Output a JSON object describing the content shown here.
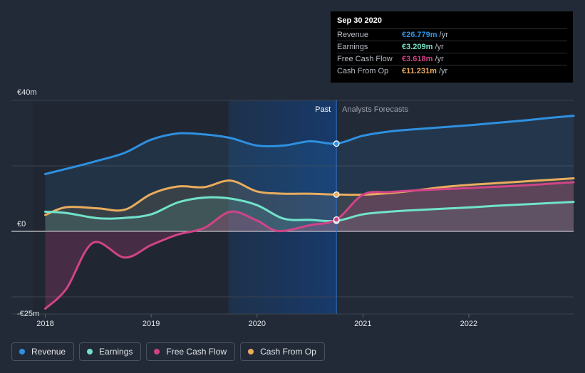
{
  "chart_data": {
    "type": "area",
    "title": "",
    "xlabel": "",
    "ylabel": "",
    "x_ticks": [
      {
        "label": "2018",
        "value": 2018
      },
      {
        "label": "2019",
        "value": 2019
      },
      {
        "label": "2020",
        "value": 2020
      },
      {
        "label": "2021",
        "value": 2021
      },
      {
        "label": "2022",
        "value": 2022
      }
    ],
    "y_ticks": [
      {
        "label": "€40m",
        "value": 40
      },
      {
        "label": "€0",
        "value": 0
      },
      {
        "label": "-€25m",
        "value": -25
      }
    ],
    "xlim": [
      2017.68,
      2022.99
    ],
    "ylim": [
      -25,
      40
    ],
    "gridlines_y": [
      40,
      20,
      0,
      -20
    ],
    "shaded_start": 2019.73,
    "divider_x": 2020.75,
    "region_past": "Past",
    "region_forecast": "Analysts Forecasts",
    "series": [
      {
        "name": "Revenue",
        "color": "#2e90e0",
        "fill": true,
        "points": [
          [
            2018,
            17.5
          ],
          [
            2018.25,
            19.5
          ],
          [
            2018.5,
            21.6
          ],
          [
            2018.75,
            24
          ],
          [
            2019,
            28
          ],
          [
            2019.25,
            29.9
          ],
          [
            2019.5,
            29.6
          ],
          [
            2019.75,
            28.5
          ],
          [
            2020,
            26.2
          ],
          [
            2020.25,
            26.2
          ],
          [
            2020.5,
            27.5
          ],
          [
            2020.75,
            26.8
          ],
          [
            2021,
            29.2
          ],
          [
            2021.25,
            30.5
          ],
          [
            2021.5,
            31.2
          ],
          [
            2021.75,
            31.8
          ],
          [
            2022,
            32.4
          ],
          [
            2022.25,
            33.1
          ],
          [
            2022.5,
            33.8
          ],
          [
            2022.75,
            34.6
          ],
          [
            2022.99,
            35.3
          ]
        ]
      },
      {
        "name": "Cash From Op",
        "color": "#e9ac5e",
        "fill": true,
        "points": [
          [
            2018,
            5
          ],
          [
            2018.2,
            7.4
          ],
          [
            2018.5,
            7
          ],
          [
            2018.75,
            6.6
          ],
          [
            2019,
            11.4
          ],
          [
            2019.25,
            13.7
          ],
          [
            2019.5,
            13.5
          ],
          [
            2019.75,
            15.5
          ],
          [
            2020,
            12.2
          ],
          [
            2020.25,
            11.5
          ],
          [
            2020.5,
            11.5
          ],
          [
            2020.75,
            11.231
          ],
          [
            2021,
            11.2
          ],
          [
            2021.25,
            11.7
          ],
          [
            2021.5,
            12.5
          ],
          [
            2021.75,
            13.5
          ],
          [
            2022,
            14.2
          ],
          [
            2022.25,
            14.7
          ],
          [
            2022.5,
            15.2
          ],
          [
            2022.75,
            15.7
          ],
          [
            2022.99,
            16.2
          ]
        ]
      },
      {
        "name": "Earnings",
        "color": "#71e3cb",
        "fill": true,
        "points": [
          [
            2018,
            6
          ],
          [
            2018.2,
            5.6
          ],
          [
            2018.5,
            4
          ],
          [
            2018.75,
            4.1
          ],
          [
            2019,
            5.2
          ],
          [
            2019.25,
            8.8
          ],
          [
            2019.5,
            10.3
          ],
          [
            2019.75,
            10
          ],
          [
            2020,
            8
          ],
          [
            2020.25,
            3.9
          ],
          [
            2020.5,
            3.5
          ],
          [
            2020.75,
            3.209
          ],
          [
            2021,
            5.2
          ],
          [
            2021.25,
            6
          ],
          [
            2021.5,
            6.5
          ],
          [
            2021.75,
            6.9
          ],
          [
            2022,
            7.3
          ],
          [
            2022.25,
            7.8
          ],
          [
            2022.5,
            8.2
          ],
          [
            2022.75,
            8.6
          ],
          [
            2022.99,
            9
          ]
        ]
      },
      {
        "name": "Free Cash Flow",
        "color": "#d04487",
        "fill": true,
        "points": [
          [
            2018,
            -23.6
          ],
          [
            2018.2,
            -17.5
          ],
          [
            2018.45,
            -3.5
          ],
          [
            2018.75,
            -8
          ],
          [
            2019,
            -4.2
          ],
          [
            2019.25,
            -1
          ],
          [
            2019.5,
            1
          ],
          [
            2019.75,
            6
          ],
          [
            2020,
            3.3
          ],
          [
            2020.2,
            0.1
          ],
          [
            2020.5,
            1.9
          ],
          [
            2020.75,
            3.618
          ],
          [
            2021,
            11.2
          ],
          [
            2021.25,
            12
          ],
          [
            2021.5,
            12.5
          ],
          [
            2021.75,
            12.9
          ],
          [
            2022,
            13.2
          ],
          [
            2022.25,
            13.6
          ],
          [
            2022.5,
            14
          ],
          [
            2022.75,
            14.5
          ],
          [
            2022.99,
            15
          ]
        ]
      }
    ],
    "highlight_x": 2020.75
  },
  "tooltip": {
    "date": "Sep 30 2020",
    "rows": [
      {
        "label": "Revenue",
        "value": "€26.779m",
        "unit": "/yr",
        "color": "#2e90e0"
      },
      {
        "label": "Earnings",
        "value": "€3.209m",
        "unit": "/yr",
        "color": "#71e3cb"
      },
      {
        "label": "Free Cash Flow",
        "value": "€3.618m",
        "unit": "/yr",
        "color": "#d04487"
      },
      {
        "label": "Cash From Op",
        "value": "€11.231m",
        "unit": "/yr",
        "color": "#e9ac5e"
      }
    ]
  },
  "legend": [
    {
      "label": "Revenue",
      "color": "#2e90e0"
    },
    {
      "label": "Earnings",
      "color": "#71e3cb"
    },
    {
      "label": "Free Cash Flow",
      "color": "#d04487"
    },
    {
      "label": "Cash From Op",
      "color": "#e9ac5e"
    }
  ]
}
